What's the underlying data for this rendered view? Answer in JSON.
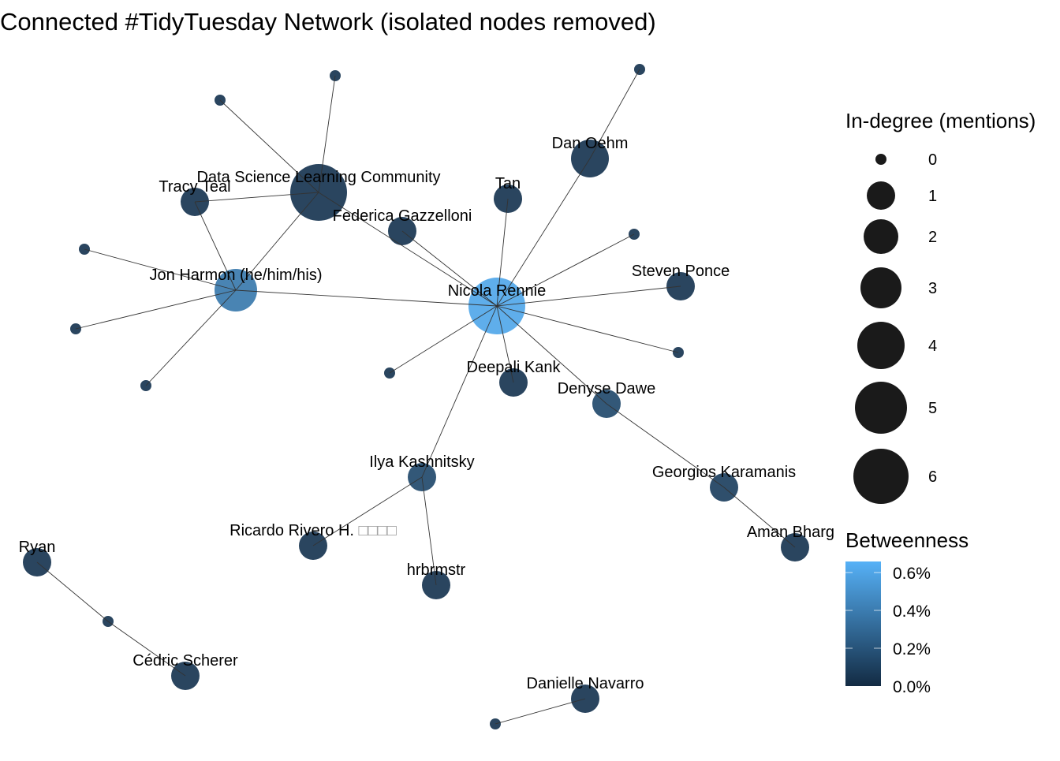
{
  "title": "Connected #TidyTuesday Network (isolated nodes removed)",
  "colors": {
    "low": "#132b43",
    "high": "#56b1f7",
    "edge": "#333333",
    "tofu": "#999999"
  },
  "nodes": [
    {
      "id": "nicola",
      "label": "Nicola Rennie",
      "in_degree": 6,
      "betweenness": 0.6
    },
    {
      "id": "dslc",
      "label": "Data Science Learning Community",
      "in_degree": 6,
      "betweenness": 0.05
    },
    {
      "id": "jon",
      "label": "Jon Harmon (he/him/his)",
      "in_degree": 4,
      "betweenness": 0.38
    },
    {
      "id": "dan",
      "label": "Dan Oehm",
      "in_degree": 3,
      "betweenness": 0.05
    },
    {
      "id": "tracy",
      "label": "Tracy Teal",
      "in_degree": 2,
      "betweenness": 0.05
    },
    {
      "id": "tan",
      "label": "Tan",
      "in_degree": 2,
      "betweenness": 0.05
    },
    {
      "id": "federica",
      "label": "Federica Gazzelloni",
      "in_degree": 2,
      "betweenness": 0.05
    },
    {
      "id": "steven",
      "label": "Steven Ponce",
      "in_degree": 2,
      "betweenness": 0.05
    },
    {
      "id": "deepali",
      "label": "Deepali Kank",
      "in_degree": 2,
      "betweenness": 0.05
    },
    {
      "id": "denyse",
      "label": "Denyse Dawe",
      "in_degree": 2,
      "betweenness": 0.15
    },
    {
      "id": "ilya",
      "label": "Ilya Kashnitsky",
      "in_degree": 2,
      "betweenness": 0.15
    },
    {
      "id": "georgios",
      "label": "Georgios Karamanis",
      "in_degree": 2,
      "betweenness": 0.1
    },
    {
      "id": "aman",
      "label": "Aman Bharga",
      "in_degree": 2,
      "betweenness": 0.05
    },
    {
      "id": "ricardo",
      "label": "Ricardo Rivero H.",
      "label_suffix": "□□□□",
      "in_degree": 2,
      "betweenness": 0.05
    },
    {
      "id": "hrbrmstr",
      "label": "hrbrmstr",
      "in_degree": 2,
      "betweenness": 0.05
    },
    {
      "id": "ryan",
      "label": "Ryan",
      "in_degree": 2,
      "betweenness": 0.05
    },
    {
      "id": "cedric",
      "label": "Cédric Scherer",
      "in_degree": 2,
      "betweenness": 0.05
    },
    {
      "id": "danielle",
      "label": "Danielle Navarro",
      "in_degree": 2,
      "betweenness": 0.05
    },
    {
      "id": "s1",
      "label": "",
      "in_degree": 0,
      "betweenness": 0.05
    },
    {
      "id": "s2",
      "label": "",
      "in_degree": 0,
      "betweenness": 0.05
    },
    {
      "id": "s3",
      "label": "",
      "in_degree": 0,
      "betweenness": 0.05
    },
    {
      "id": "s4",
      "label": "",
      "in_degree": 0,
      "betweenness": 0.05
    },
    {
      "id": "s5",
      "label": "",
      "in_degree": 0,
      "betweenness": 0.05
    },
    {
      "id": "s6",
      "label": "",
      "in_degree": 0,
      "betweenness": 0.05
    },
    {
      "id": "s7",
      "label": "",
      "in_degree": 0,
      "betweenness": 0.05
    },
    {
      "id": "s8",
      "label": "",
      "in_degree": 0,
      "betweenness": 0.05
    },
    {
      "id": "s9",
      "label": "",
      "in_degree": 0,
      "betweenness": 0.05
    },
    {
      "id": "s10",
      "label": "",
      "in_degree": 0,
      "betweenness": 0.05
    },
    {
      "id": "s11",
      "label": "",
      "in_degree": 0,
      "betweenness": 0.05
    }
  ],
  "edges": [
    [
      "nicola",
      "dslc"
    ],
    [
      "nicola",
      "federica"
    ],
    [
      "nicola",
      "tan"
    ],
    [
      "nicola",
      "dan"
    ],
    [
      "dan",
      "s3"
    ],
    [
      "nicola",
      "s4"
    ],
    [
      "nicola",
      "steven"
    ],
    [
      "nicola",
      "s9"
    ],
    [
      "nicola",
      "denyse"
    ],
    [
      "nicola",
      "deepali"
    ],
    [
      "nicola",
      "ilya"
    ],
    [
      "nicola",
      "s8"
    ],
    [
      "nicola",
      "jon"
    ],
    [
      "dslc",
      "s1"
    ],
    [
      "dslc",
      "s2"
    ],
    [
      "dslc",
      "tracy"
    ],
    [
      "dslc",
      "jon"
    ],
    [
      "tracy",
      "jon"
    ],
    [
      "jon",
      "s5"
    ],
    [
      "jon",
      "s6"
    ],
    [
      "jon",
      "s7"
    ],
    [
      "denyse",
      "georgios"
    ],
    [
      "georgios",
      "aman"
    ],
    [
      "ilya",
      "ricardo"
    ],
    [
      "ilya",
      "hrbrmstr"
    ],
    [
      "ryan",
      "s10"
    ],
    [
      "s10",
      "cedric"
    ],
    [
      "danielle",
      "s11"
    ]
  ],
  "legend": {
    "size_title": "In-degree (mentions)",
    "size_values": [
      "0",
      "1",
      "2",
      "3",
      "4",
      "5",
      "6"
    ],
    "color_title": "Betweenness",
    "color_ticks": [
      "0.6%",
      "0.4%",
      "0.2%",
      "0.0%"
    ],
    "color_range": [
      0,
      0.65
    ]
  }
}
